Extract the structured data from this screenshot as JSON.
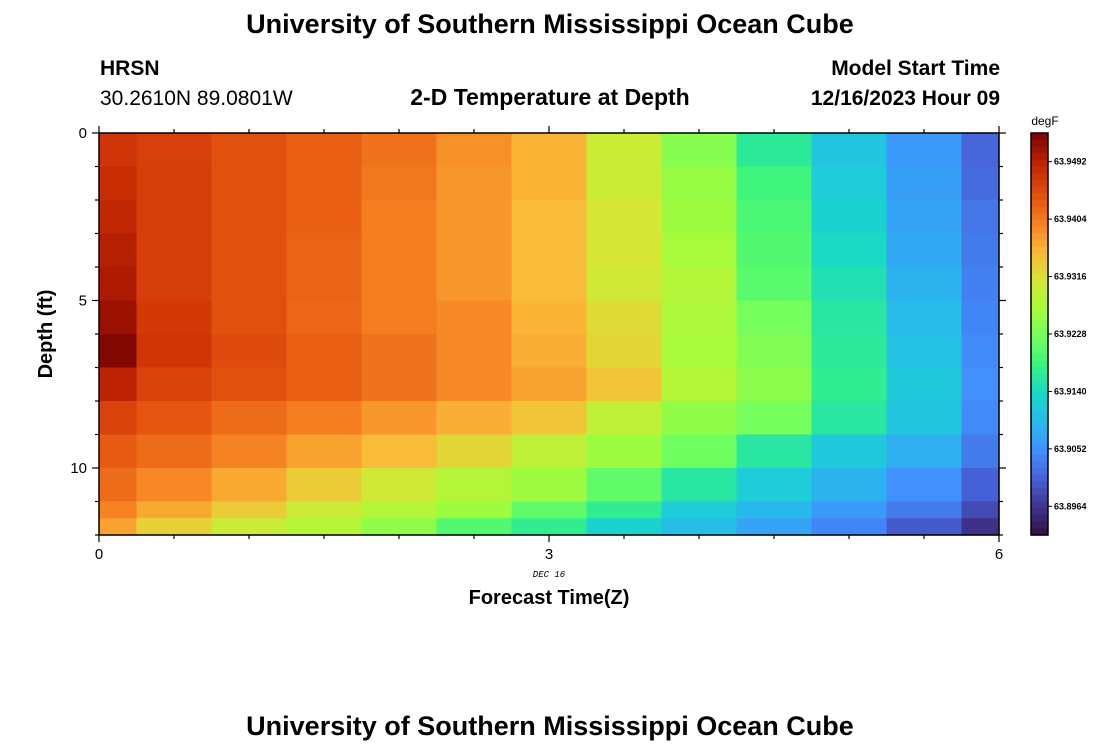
{
  "header": {
    "title": "University of Southern Mississippi Ocean Cube",
    "station": "HRSN",
    "coords": "30.2610N  89.0801W",
    "chart_title": "2-D Temperature at Depth",
    "model_start_label": "Model Start Time",
    "model_start_value": "12/16/2023 Hour 09"
  },
  "footer": {
    "title": "University of Southern Mississippi Ocean Cube"
  },
  "chart_data": {
    "type": "heatmap",
    "title": "2-D Temperature at Depth",
    "xlabel": "Forecast Time(Z)",
    "ylabel": "Depth (ft)",
    "xlim": [
      0,
      6
    ],
    "ylim": [
      12,
      0
    ],
    "x_ticks": [
      "0",
      "3",
      "6"
    ],
    "y_ticks": [
      "0",
      "5",
      "10"
    ],
    "x_annotation": "DEC 16",
    "x_edges": [
      0,
      0.25,
      0.75,
      1.25,
      1.75,
      2.25,
      2.75,
      3.25,
      3.75,
      4.25,
      4.75,
      5.25,
      5.75,
      6
    ],
    "y_edges": [
      0,
      1,
      2,
      3,
      4,
      5,
      6,
      7,
      8,
      9,
      10,
      11,
      11.5,
      12
    ],
    "colorbar": {
      "unit": "degF",
      "min": 63.892,
      "max": 63.9536,
      "tick_labels": [
        "63.9492",
        "63.9404",
        "63.9316",
        "63.9228",
        "63.9140",
        "63.9052",
        "63.8964"
      ],
      "tick_values": [
        63.9492,
        63.9404,
        63.9316,
        63.9228,
        63.914,
        63.9052,
        63.8964
      ]
    },
    "values": [
      [
        63.947,
        63.9457,
        63.944,
        63.9425,
        63.941,
        63.9385,
        63.9355,
        63.93,
        63.924,
        63.9165,
        63.911,
        63.906,
        63.901
      ],
      [
        63.948,
        63.946,
        63.944,
        63.9425,
        63.9405,
        63.938,
        63.9355,
        63.93,
        63.9255,
        63.9185,
        63.912,
        63.9065,
        63.9015
      ],
      [
        63.9485,
        63.946,
        63.944,
        63.9425,
        63.94,
        63.938,
        63.935,
        63.931,
        63.926,
        63.9195,
        63.913,
        63.907,
        63.9025
      ],
      [
        63.9495,
        63.946,
        63.944,
        63.9422,
        63.94,
        63.938,
        63.935,
        63.931,
        63.927,
        63.92,
        63.914,
        63.9075,
        63.903
      ],
      [
        63.95,
        63.946,
        63.944,
        63.9422,
        63.94,
        63.938,
        63.935,
        63.9305,
        63.928,
        63.9205,
        63.915,
        63.9085,
        63.9035
      ],
      [
        63.9515,
        63.9465,
        63.944,
        63.942,
        63.94,
        63.939,
        63.9355,
        63.932,
        63.9275,
        63.9225,
        63.916,
        63.9095,
        63.904
      ],
      [
        63.953,
        63.947,
        63.9445,
        63.9425,
        63.941,
        63.939,
        63.936,
        63.9325,
        63.927,
        63.9235,
        63.9165,
        63.9105,
        63.9045
      ],
      [
        63.949,
        63.9455,
        63.944,
        63.9425,
        63.941,
        63.939,
        63.937,
        63.934,
        63.928,
        63.9245,
        63.917,
        63.9115,
        63.905
      ],
      [
        63.9455,
        63.9435,
        63.9415,
        63.94,
        63.938,
        63.936,
        63.934,
        63.929,
        63.925,
        63.9225,
        63.916,
        63.911,
        63.9045
      ],
      [
        63.943,
        63.9415,
        63.9395,
        63.937,
        63.935,
        63.9325,
        63.929,
        63.926,
        63.922,
        63.916,
        63.9115,
        63.908,
        63.903
      ],
      [
        63.9415,
        63.939,
        63.9365,
        63.9335,
        63.9305,
        63.928,
        63.926,
        63.921,
        63.916,
        63.912,
        63.9085,
        63.905,
        63.9005
      ],
      [
        63.9395,
        63.9365,
        63.9335,
        63.93,
        63.928,
        63.926,
        63.921,
        63.917,
        63.912,
        63.909,
        63.906,
        63.903,
        63.8985
      ],
      [
        63.937,
        63.933,
        63.93,
        63.928,
        63.925,
        63.92,
        63.917,
        63.913,
        63.91,
        63.907,
        63.904,
        63.9,
        63.896
      ]
    ]
  }
}
